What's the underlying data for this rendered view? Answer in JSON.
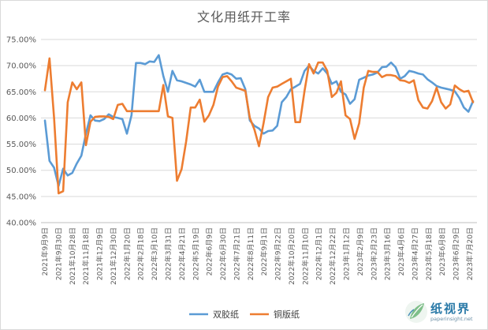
{
  "watermark": {
    "name": "纸视界",
    "url": "paperinsight.net"
  },
  "colors": {
    "series1": "#5b9bd5",
    "series2": "#ed7d31",
    "grid": "#d9d9d9",
    "axis": "#bfbfbf"
  },
  "chart_data": {
    "type": "line",
    "title": "文化用纸开工率",
    "xlabel": "",
    "ylabel": "",
    "ylim": [
      0.4,
      0.75
    ],
    "y_ticks": [
      "40.00%",
      "45.00%",
      "50.00%",
      "55.00%",
      "60.00%",
      "65.00%",
      "70.00%",
      "75.00%"
    ],
    "grid": "horizontal",
    "legend_position": "bottom",
    "x_tick_labels": [
      "2021年9月9日",
      "2021年9月30日",
      "2021年10月28日",
      "2021年11月18日",
      "2021年12月9日",
      "2021年12月30日",
      "2022年1月20日",
      "2022年2月18日",
      "2022年3月10日",
      "2022年3月31日",
      "2022年4月21日",
      "2022年5月19日",
      "2022年6月9日",
      "2022年6月30日",
      "2022年7月21日",
      "2022年8月11日",
      "2022年9月1日",
      "2022年9月22日",
      "2022年10月20日",
      "2022年11月10日",
      "2022年12月1日",
      "2022年12月22日",
      "2023年1月12日",
      "2023年2月9日",
      "2023年2月23日",
      "2023年3月16日",
      "2023年4月6日",
      "2023年4月27日",
      "2023年5月18日",
      "2023年6月8日",
      "2023年6月29日",
      "2023年7月20日"
    ],
    "series": [
      {
        "name": "双胶纸",
        "values": [
          0.595,
          0.518,
          0.505,
          0.47,
          0.503,
          0.49,
          0.495,
          0.513,
          0.528,
          0.57,
          0.605,
          0.595,
          0.594,
          0.598,
          0.607,
          0.602,
          0.6,
          0.598,
          0.57,
          0.605,
          0.705,
          0.705,
          0.703,
          0.708,
          0.707,
          0.72,
          0.68,
          0.65,
          0.69,
          0.672,
          0.67,
          0.667,
          0.664,
          0.66,
          0.673,
          0.65,
          0.65,
          0.65,
          0.668,
          0.683,
          0.686,
          0.683,
          0.675,
          0.676,
          0.655,
          0.595,
          0.585,
          0.58,
          0.57,
          0.575,
          0.576,
          0.585,
          0.63,
          0.64,
          0.655,
          0.66,
          0.665,
          0.69,
          0.7,
          0.69,
          0.685,
          0.695,
          0.685,
          0.665,
          0.67,
          0.65,
          0.645,
          0.627,
          0.636,
          0.673,
          0.677,
          0.681,
          0.683,
          0.687,
          0.697,
          0.698,
          0.706,
          0.697,
          0.675,
          0.68,
          0.69,
          0.688,
          0.685,
          0.683,
          0.674,
          0.668,
          0.661,
          0.658,
          0.656,
          0.654,
          0.651,
          0.638,
          0.62,
          0.612,
          0.632
        ]
      },
      {
        "name": "铜版纸",
        "values": [
          0.653,
          0.714,
          0.6,
          0.456,
          0.46,
          0.63,
          0.668,
          0.655,
          0.668,
          0.548,
          0.593,
          0.602,
          0.603,
          0.603,
          0.602,
          0.598,
          0.625,
          0.627,
          0.613,
          0.613,
          0.613,
          0.613,
          0.613,
          0.613,
          0.613,
          0.613,
          0.663,
          0.603,
          0.6,
          0.48,
          0.502,
          0.555,
          0.62,
          0.62,
          0.635,
          0.593,
          0.605,
          0.625,
          0.66,
          0.678,
          0.68,
          0.67,
          0.658,
          0.655,
          0.652,
          0.6,
          0.578,
          0.546,
          0.59,
          0.64,
          0.658,
          0.66,
          0.665,
          0.67,
          0.675,
          0.592,
          0.592,
          0.652,
          0.703,
          0.685,
          0.706,
          0.706,
          0.69,
          0.64,
          0.648,
          0.67,
          0.605,
          0.598,
          0.56,
          0.59,
          0.658,
          0.69,
          0.688,
          0.688,
          0.678,
          0.682,
          0.682,
          0.68,
          0.672,
          0.671,
          0.667,
          0.672,
          0.634,
          0.62,
          0.618,
          0.632,
          0.658,
          0.63,
          0.618,
          0.626,
          0.662,
          0.655,
          0.65,
          0.652,
          0.63
        ]
      }
    ]
  }
}
